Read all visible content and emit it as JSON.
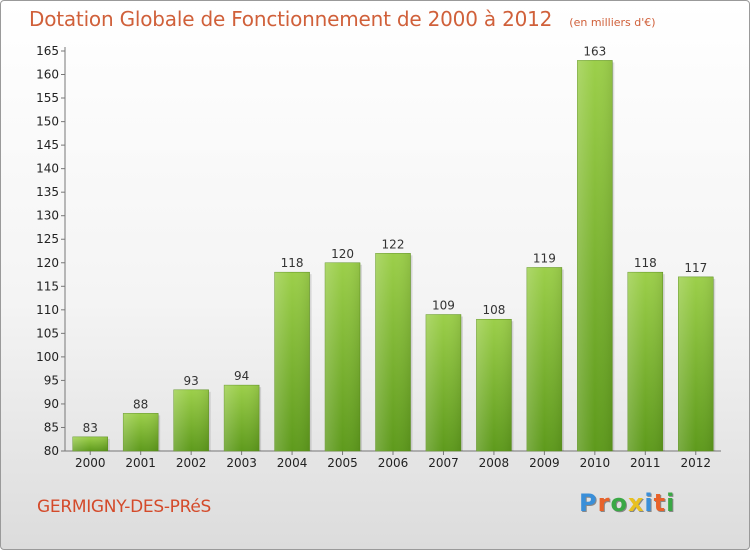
{
  "title": "Dotation Globale de Fonctionnement de 2000 à 2012",
  "subtitle": "(en milliers d'€)",
  "commune": "GERMIGNY-DES-PRéS",
  "logo": {
    "letters": [
      "P",
      "r",
      "o",
      "x",
      "i",
      "t",
      "i"
    ],
    "colors": [
      "#3a8fd9",
      "#e8622a",
      "#3aa845",
      "#e8c020",
      "#3a8fd9",
      "#e8622a",
      "#3aa845"
    ]
  },
  "colors": {
    "bar_top": "#9ccf4a",
    "bar_bottom": "#5e9a1c",
    "title": "#d0603a"
  },
  "chart_data": {
    "type": "bar",
    "categories": [
      "2000",
      "2001",
      "2002",
      "2003",
      "2004",
      "2005",
      "2006",
      "2007",
      "2008",
      "2009",
      "2010",
      "2011",
      "2012"
    ],
    "values": [
      83,
      88,
      93,
      94,
      118,
      120,
      122,
      109,
      108,
      119,
      163,
      118,
      117
    ],
    "ylim": [
      80,
      165
    ],
    "yticks": [
      80,
      85,
      90,
      95,
      100,
      105,
      110,
      115,
      120,
      125,
      130,
      135,
      140,
      145,
      150,
      155,
      160,
      165
    ],
    "grid": false,
    "legend": "none"
  }
}
